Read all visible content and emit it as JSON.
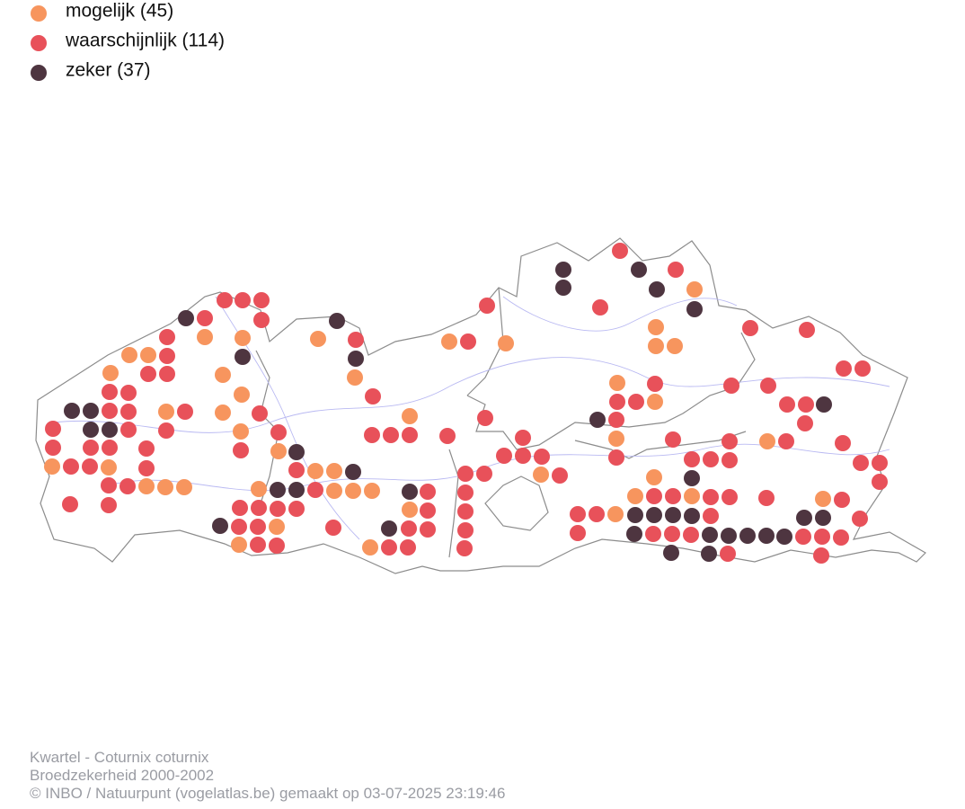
{
  "legend": {
    "items": [
      {
        "label": "mogelijk (45)",
        "color": "#f7955e"
      },
      {
        "label": "waarschijnlijk (114)",
        "color": "#e8515a"
      },
      {
        "label": "zeker (37)",
        "color": "#4e3540"
      }
    ]
  },
  "footer": {
    "lines": [
      "Kwartel - Coturnix coturnix",
      "Broedzekerheid 2000-2002",
      "© INBO / Natuurpunt (vogelatlas.be) gemaakt op 03-07-2025 23:19:46"
    ]
  }
}
